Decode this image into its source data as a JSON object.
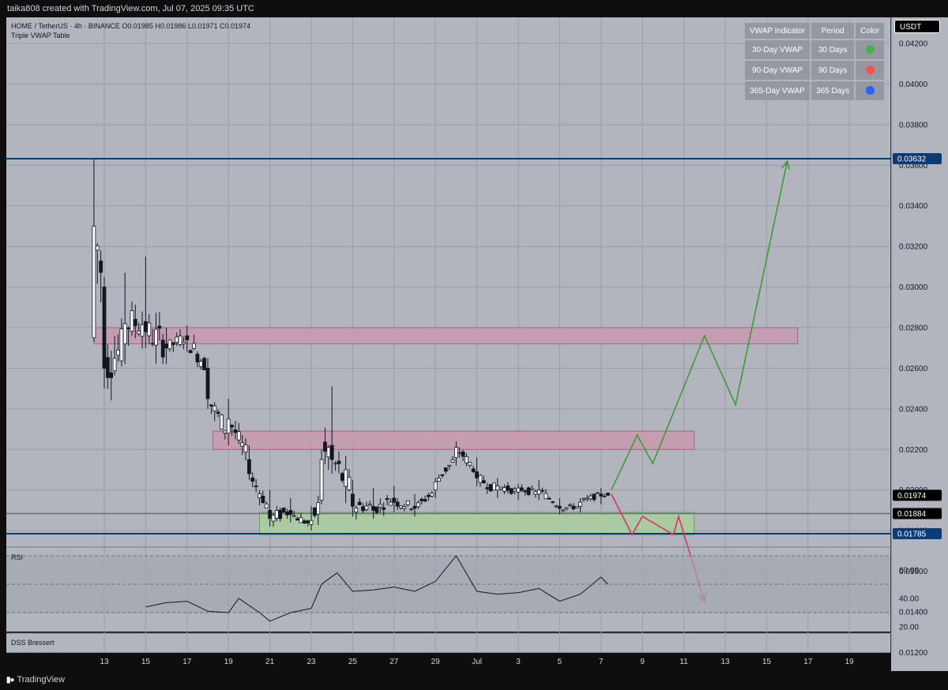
{
  "header": {
    "text": "taika808 created with TradingView.com, Jul 07, 2025 09:35 UTC"
  },
  "legend": {
    "symbol_line": "HOME / TetherUS · 4h · BINANCE  O0.01985  H0.01986  L0.01971  C0.01974",
    "indicator_line": "Triple VWAP Table",
    "rsi_label": "RSI",
    "dss_label": "DSS Bressert"
  },
  "price_axis": {
    "currency": "USDT",
    "ticks": [
      "0.04200",
      "0.04000",
      "0.03800",
      "0.03600",
      "0.03400",
      "0.03200",
      "0.03000",
      "0.02800",
      "0.02600",
      "0.02400",
      "0.02200",
      "0.02000",
      "0.01800",
      "0.01600",
      "0.01400",
      "0.01200"
    ],
    "badges": [
      {
        "value": "0.03632",
        "color": "#0b3c78"
      },
      {
        "value": "0.01974",
        "color": "#000000"
      },
      {
        "value": "0.01884",
        "color": "#000000"
      },
      {
        "value": "0.01785",
        "color": "#0b3c78"
      }
    ]
  },
  "rsi_axis": {
    "ticks": [
      "60.00",
      "40.00",
      "20.00"
    ]
  },
  "time_axis": {
    "ticks": [
      "13",
      "15",
      "17",
      "19",
      "21",
      "23",
      "25",
      "27",
      "29",
      "Jul",
      "3",
      "5",
      "7",
      "9",
      "11",
      "13",
      "15",
      "17",
      "19"
    ]
  },
  "vwap_table": {
    "headers": [
      "VWAP Indicator",
      "Period",
      "Color"
    ],
    "rows": [
      {
        "name": "30-Day VWAP",
        "period": "30 Days",
        "color": "#4caf50"
      },
      {
        "name": "90-Day VWAP",
        "period": "90 Days",
        "color": "#f05454"
      },
      {
        "name": "365-Day VWAP",
        "period": "365 Days",
        "color": "#2962ff"
      }
    ]
  },
  "footer": {
    "brand": "TradingView",
    "logo_icon": "tradingview-logo-icon"
  },
  "chart_data": {
    "type": "candlestick",
    "title": "HOME / TetherUS · 4h · BINANCE",
    "x_range": [
      "Jun 11 2025",
      "Jul 20 2025"
    ],
    "y_range": [
      0.0115,
      0.043
    ],
    "grid": true,
    "colors": {
      "background": "#b2b5be",
      "candle": "#131722",
      "resistance_zone": "#c79aae",
      "support_zone": "#a9cc9e",
      "bull_path": "#3d9b35",
      "bear_path": "#d6336c",
      "level_line": "#0b3c78"
    },
    "anchor_candles": [
      {
        "x": "Jun 12 12:00",
        "o": 0.0275,
        "h": 0.0363,
        "l": 0.0273,
        "c": 0.033
      },
      {
        "x": "Jun 13 00:00",
        "o": 0.03,
        "h": 0.0305,
        "l": 0.025,
        "c": 0.026
      },
      {
        "x": "Jun 14 00:00",
        "o": 0.0272,
        "h": 0.0307,
        "l": 0.0262,
        "c": 0.0282
      },
      {
        "x": "Jun 15 00:00",
        "o": 0.0283,
        "h": 0.0315,
        "l": 0.027,
        "c": 0.0278
      },
      {
        "x": "Jun 16 00:00",
        "o": 0.0272,
        "h": 0.028,
        "l": 0.0262,
        "c": 0.027
      },
      {
        "x": "Jun 17 00:00",
        "o": 0.0276,
        "h": 0.0281,
        "l": 0.0268,
        "c": 0.0274
      },
      {
        "x": "Jun 18 00:00",
        "o": 0.026,
        "h": 0.0265,
        "l": 0.024,
        "c": 0.0245
      },
      {
        "x": "Jun 19 00:00",
        "o": 0.0228,
        "h": 0.0245,
        "l": 0.0222,
        "c": 0.0235
      },
      {
        "x": "Jun 20 00:00",
        "o": 0.0215,
        "h": 0.0222,
        "l": 0.0205,
        "c": 0.0208
      },
      {
        "x": "Jun 21 00:00",
        "o": 0.019,
        "h": 0.02,
        "l": 0.0182,
        "c": 0.0186
      },
      {
        "x": "Jun 22 00:00",
        "o": 0.019,
        "h": 0.0196,
        "l": 0.0184,
        "c": 0.0188
      },
      {
        "x": "Jun 23 00:00",
        "o": 0.0183,
        "h": 0.0192,
        "l": 0.018,
        "c": 0.0185
      },
      {
        "x": "Jun 23 12:00",
        "o": 0.0195,
        "h": 0.022,
        "l": 0.0193,
        "c": 0.0215
      },
      {
        "x": "Jun 24 00:00",
        "o": 0.0222,
        "h": 0.0251,
        "l": 0.0208,
        "c": 0.0215
      },
      {
        "x": "Jun 25 00:00",
        "o": 0.0198,
        "h": 0.0205,
        "l": 0.0187,
        "c": 0.0192
      },
      {
        "x": "Jun 26 00:00",
        "o": 0.0192,
        "h": 0.0201,
        "l": 0.0186,
        "c": 0.019
      },
      {
        "x": "Jun 27 00:00",
        "o": 0.0196,
        "h": 0.0202,
        "l": 0.0189,
        "c": 0.0194
      },
      {
        "x": "Jun 28 00:00",
        "o": 0.0192,
        "h": 0.0198,
        "l": 0.0187,
        "c": 0.0191
      },
      {
        "x": "Jun 29 00:00",
        "o": 0.02,
        "h": 0.0206,
        "l": 0.0196,
        "c": 0.0204
      },
      {
        "x": "Jun 30 00:00",
        "o": 0.0216,
        "h": 0.0224,
        "l": 0.0212,
        "c": 0.0221
      },
      {
        "x": "Jul 01 00:00",
        "o": 0.0209,
        "h": 0.0216,
        "l": 0.0202,
        "c": 0.0206
      },
      {
        "x": "Jul 02 00:00",
        "o": 0.02,
        "h": 0.0206,
        "l": 0.0196,
        "c": 0.0202
      },
      {
        "x": "Jul 03 00:00",
        "o": 0.0199,
        "h": 0.0203,
        "l": 0.0195,
        "c": 0.0201
      },
      {
        "x": "Jul 04 00:00",
        "o": 0.0198,
        "h": 0.0205,
        "l": 0.0195,
        "c": 0.02
      },
      {
        "x": "Jul 05 00:00",
        "o": 0.0192,
        "h": 0.0196,
        "l": 0.0188,
        "c": 0.0191
      },
      {
        "x": "Jul 06 00:00",
        "o": 0.0192,
        "h": 0.0196,
        "l": 0.0189,
        "c": 0.0194
      },
      {
        "x": "Jul 07 00:00",
        "o": 0.0198,
        "h": 0.0201,
        "l": 0.0193,
        "c": 0.0197
      },
      {
        "x": "Jul 07 08:00",
        "o": 0.01985,
        "h": 0.01986,
        "l": 0.01971,
        "c": 0.01974
      }
    ],
    "horizontal_lines": [
      0.03632,
      0.01884,
      0.01785
    ],
    "zones": [
      {
        "type": "resistance",
        "x": [
          "Jun 12 12:00",
          "Jul 16 12:00"
        ],
        "y": [
          0.0272,
          0.028
        ]
      },
      {
        "type": "resistance",
        "x": [
          "Jun 18 06:00",
          "Jul 11 12:00"
        ],
        "y": [
          0.022,
          0.0229
        ]
      },
      {
        "type": "support",
        "x": [
          "Jun 20 12:00",
          "Jul 11 12:00"
        ],
        "y": [
          0.0178,
          0.0189
        ]
      }
    ],
    "projection_bull": [
      {
        "x": "Jul 07 12:00",
        "y": 0.02
      },
      {
        "x": "Jul 08 18:00",
        "y": 0.0227
      },
      {
        "x": "Jul 09 12:00",
        "y": 0.0213
      },
      {
        "x": "Jul 12 00:00",
        "y": 0.0276
      },
      {
        "x": "Jul 13 12:00",
        "y": 0.0242
      },
      {
        "x": "Jul 16 00:00",
        "y": 0.0362
      }
    ],
    "projection_bear": [
      {
        "x": "Jul 07 12:00",
        "y": 0.0198
      },
      {
        "x": "Jul 08 12:00",
        "y": 0.0178
      },
      {
        "x": "Jul 09 00:00",
        "y": 0.0187
      },
      {
        "x": "Jul 10 12:00",
        "y": 0.0178
      },
      {
        "x": "Jul 10 18:00",
        "y": 0.0187
      },
      {
        "x": "Jul 12 00:00",
        "y": 0.0145
      }
    ],
    "rsi": {
      "range": [
        10,
        80
      ],
      "levels": [
        70,
        50,
        30
      ],
      "points": [
        [
          "Jun 15 00:00",
          34
        ],
        [
          "Jun 16 00:00",
          37
        ],
        [
          "Jun 17 00:00",
          38
        ],
        [
          "Jun 18 00:00",
          31
        ],
        [
          "Jun 19 00:00",
          30
        ],
        [
          "Jun 19 12:00",
          40
        ],
        [
          "Jun 20 12:00",
          30
        ],
        [
          "Jun 21 00:00",
          24
        ],
        [
          "Jun 22 00:00",
          30
        ],
        [
          "Jun 23 00:00",
          33
        ],
        [
          "Jun 23 12:00",
          50
        ],
        [
          "Jun 24 06:00",
          58
        ],
        [
          "Jun 25 00:00",
          45
        ],
        [
          "Jun 26 00:00",
          46
        ],
        [
          "Jun 27 00:00",
          48
        ],
        [
          "Jun 28 00:00",
          45
        ],
        [
          "Jun 29 00:00",
          52
        ],
        [
          "Jun 30 00:00",
          70
        ],
        [
          "Jul 01 00:00",
          45
        ],
        [
          "Jul 02 00:00",
          43
        ],
        [
          "Jul 03 00:00",
          44
        ],
        [
          "Jul 04 00:00",
          47
        ],
        [
          "Jul 05 00:00",
          38
        ],
        [
          "Jul 06 00:00",
          43
        ],
        [
          "Jul 07 00:00",
          55
        ],
        [
          "Jul 07 08:00",
          50
        ]
      ]
    }
  }
}
